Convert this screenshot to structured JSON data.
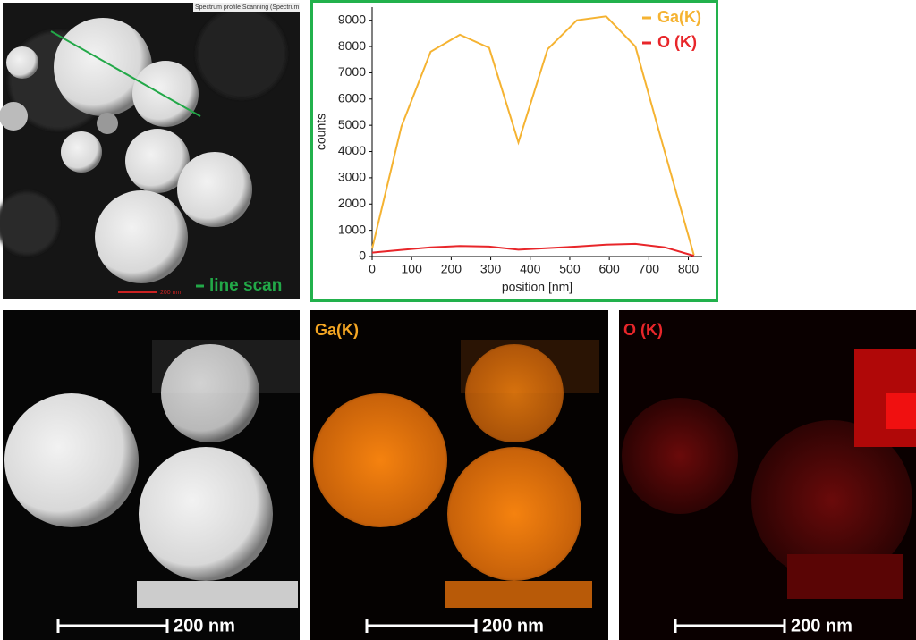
{
  "chart_data": {
    "type": "line",
    "x": [
      0,
      74,
      148,
      222,
      296,
      370,
      444,
      518,
      592,
      666,
      740,
      814
    ],
    "series": [
      {
        "name": "Ga(K)",
        "color": "#f5b332",
        "values": [
          300,
          4950,
          7800,
          8450,
          7950,
          4350,
          7900,
          9000,
          9150,
          8000,
          4000,
          50
        ]
      },
      {
        "name": "O (K)",
        "color": "#e8262a",
        "values": [
          150,
          250,
          350,
          400,
          380,
          260,
          320,
          380,
          450,
          480,
          350,
          30
        ]
      }
    ],
    "xlabel": "position [nm]",
    "ylabel": "counts",
    "xlim": [
      0,
      835
    ],
    "ylim": [
      0,
      9500
    ],
    "xticks": [
      0,
      100,
      200,
      300,
      400,
      500,
      600,
      700,
      800
    ],
    "yticks": [
      0,
      1000,
      2000,
      3000,
      4000,
      5000,
      6000,
      7000,
      8000,
      9000
    ],
    "legend": "upper right"
  },
  "top_image": {
    "header": "Spectrum profile Scanning (Spectrum",
    "scale_bar": "200 nm",
    "line_label": "line scan"
  },
  "maps": [
    {
      "scale_bar": "200 nm"
    },
    {
      "label": "Ga(K)",
      "scale_bar": "200 nm"
    },
    {
      "label": "O (K)",
      "scale_bar": "200 nm"
    }
  ]
}
